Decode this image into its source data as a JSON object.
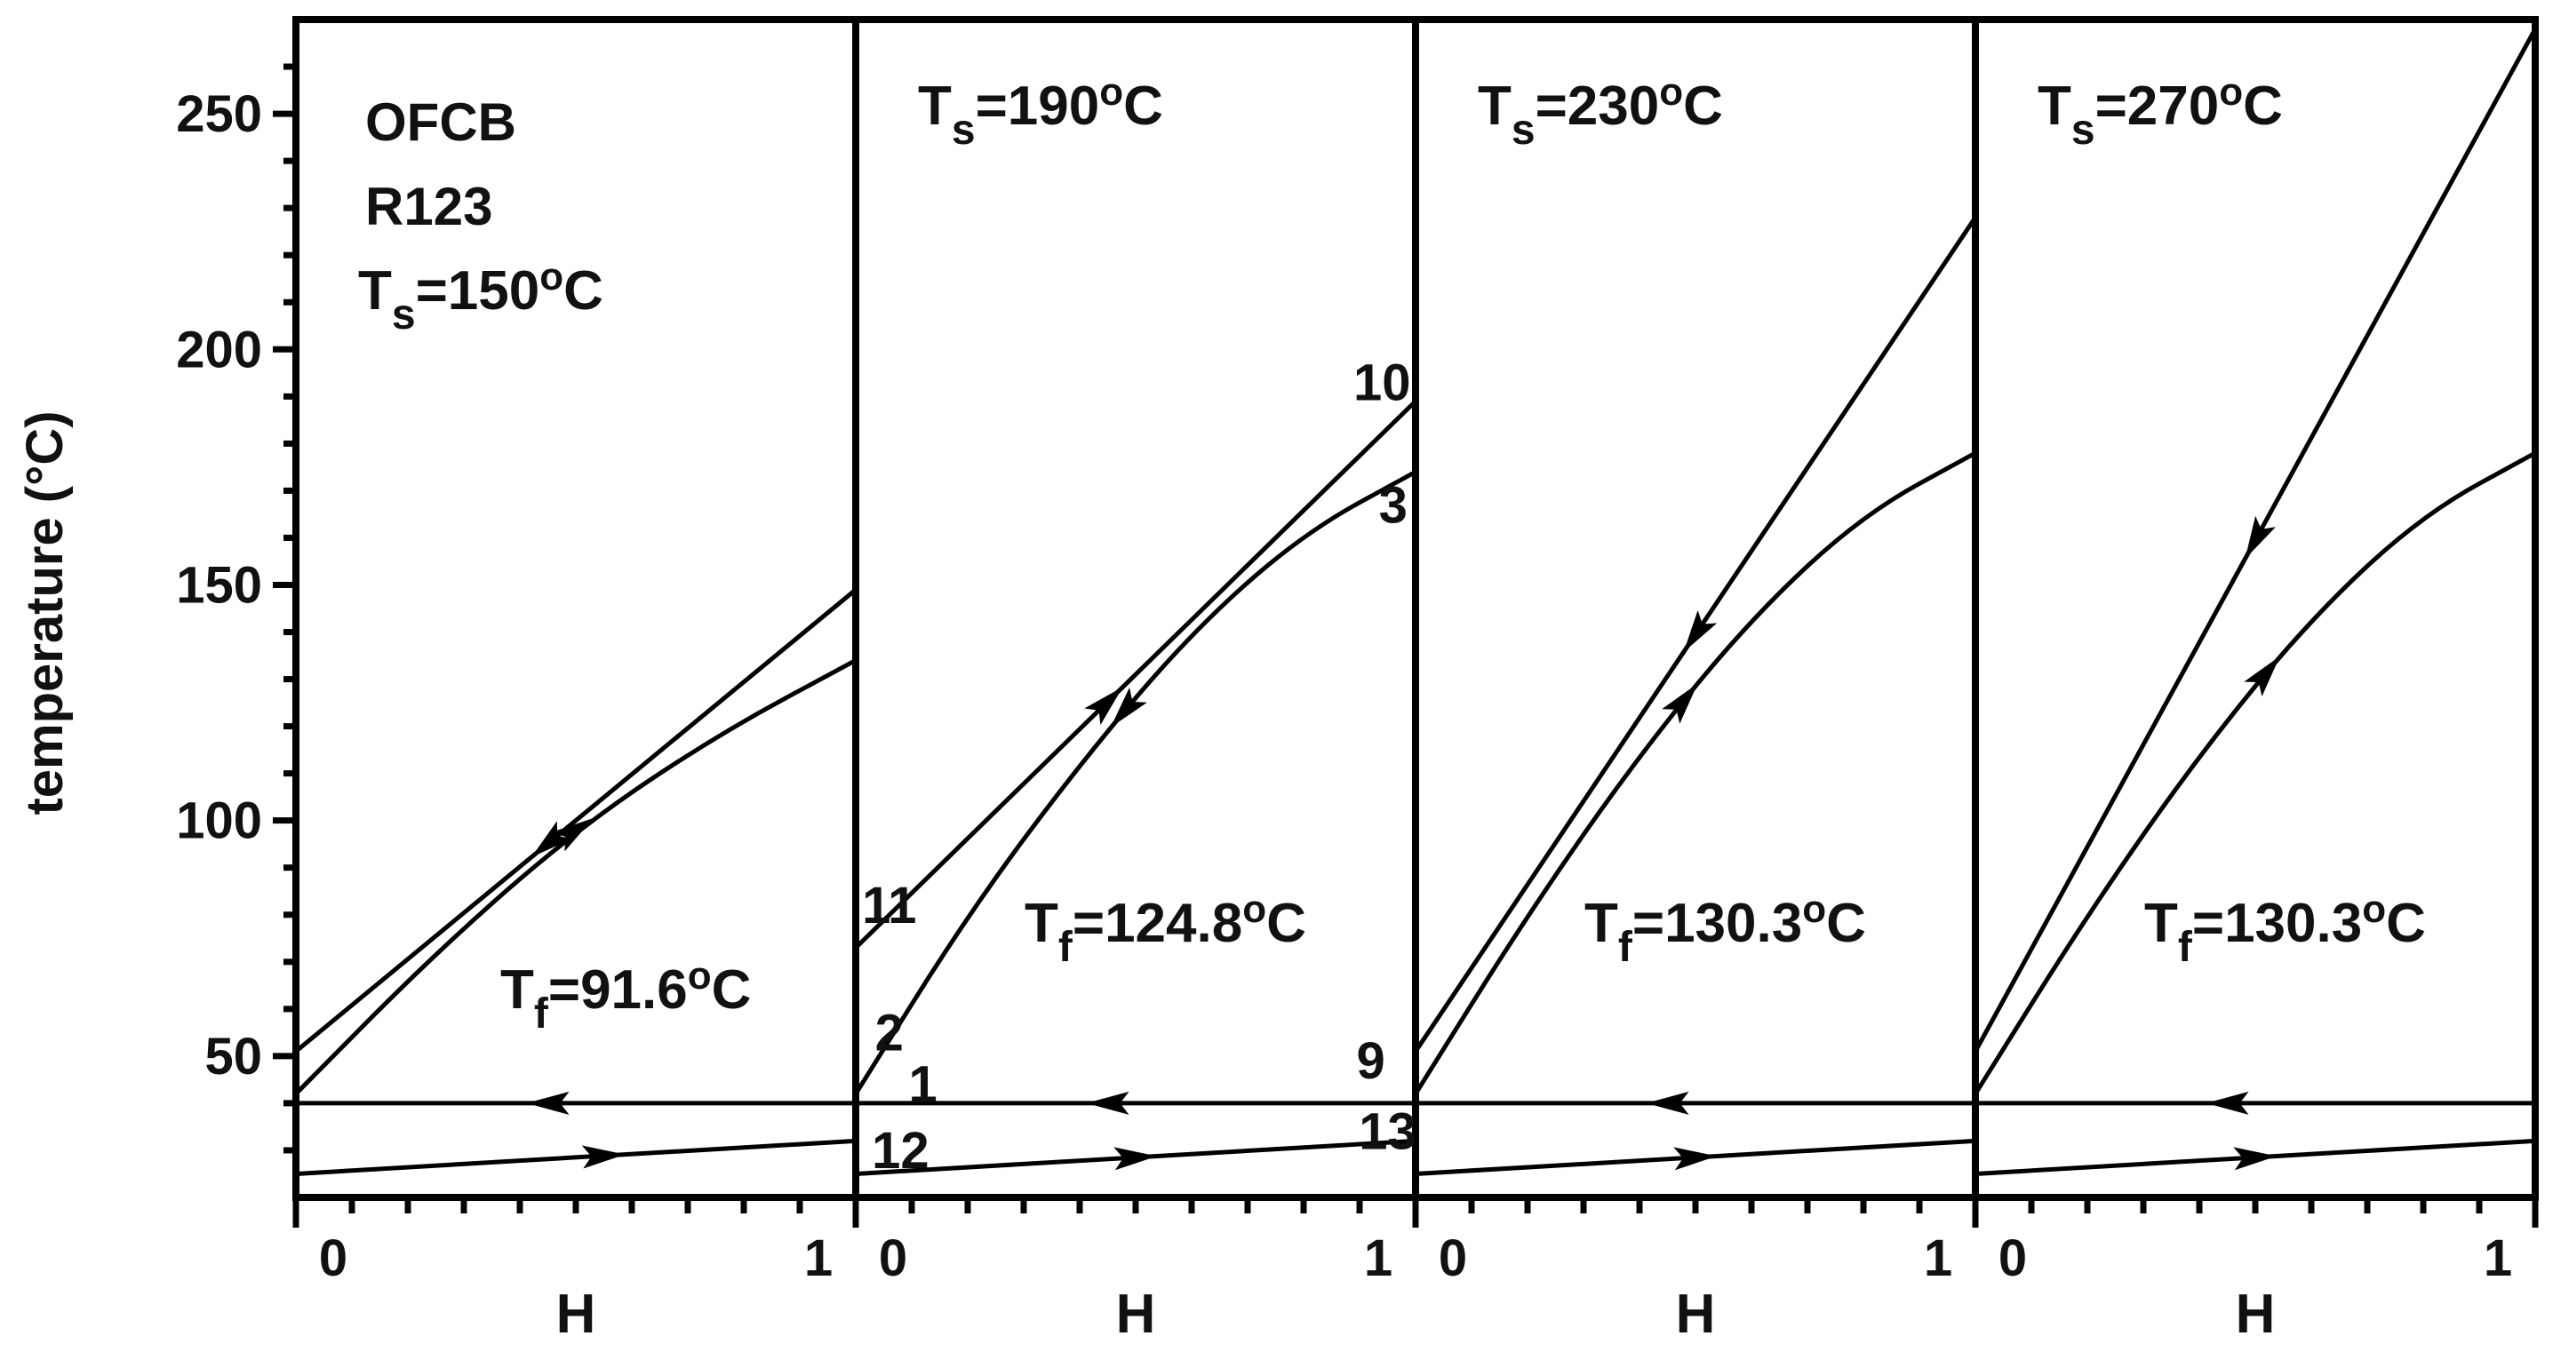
{
  "chart_data": {
    "type": "line",
    "ylabel": "temperature (°C)",
    "xlabel": "H",
    "ylim": [
      20,
      270
    ],
    "xlim": [
      0,
      1
    ],
    "yticks": [
      50,
      100,
      150,
      200,
      250
    ],
    "xtick_labels": [
      "0",
      "1"
    ],
    "panels": [
      {
        "title_lines": [
          "OFCB",
          "R123"
        ],
        "ts_label": {
          "main": "T",
          "sub": "s",
          "rest1": "=150",
          "sup": "o",
          "rest2": "C"
        },
        "tf_label": {
          "main": "T",
          "sub": "f",
          "rest1": "=91.6",
          "sup": "o",
          "rest2": "C"
        },
        "series": [
          {
            "x": [
              0,
              1
            ],
            "y": [
              51,
              149
            ],
            "arrow": {
              "at": 0.45,
              "dir": "down"
            }
          },
          {
            "x": [
              0,
              0.25,
              0.5,
              0.75,
              1
            ],
            "y": [
              42,
              72,
              98,
              118,
              134
            ],
            "arrow": {
              "at": 0.5,
              "dir": "up"
            }
          },
          {
            "x": [
              0,
              1
            ],
            "y": [
              40,
              40
            ],
            "arrow": {
              "at": 0.45,
              "dir": "left"
            }
          },
          {
            "x": [
              0,
              1
            ],
            "y": [
              25,
              32
            ],
            "arrow": {
              "at": 0.55,
              "dir": "right"
            }
          }
        ],
        "point_labels": []
      },
      {
        "title_lines": [],
        "ts_label": {
          "main": "T",
          "sub": "s",
          "rest1": "=190",
          "sup": "o",
          "rest2": "C"
        },
        "tf_label": {
          "main": "T",
          "sub": "f",
          "rest1": "=124.8",
          "sup": "o",
          "rest2": "C"
        },
        "series": [
          {
            "x": [
              0,
              1
            ],
            "y": [
              73,
              189
            ],
            "arrow": {
              "at": 0.45,
              "dir": "up"
            }
          },
          {
            "x": [
              0,
              0.2,
              0.4,
              0.6,
              0.8,
              1
            ],
            "y": [
              42,
              80,
              112,
              140,
              161,
              174
            ],
            "arrow": {
              "at": 0.48,
              "dir": "down"
            }
          },
          {
            "x": [
              0,
              1
            ],
            "y": [
              40,
              40
            ],
            "arrow": {
              "at": 0.45,
              "dir": "left"
            }
          },
          {
            "x": [
              0,
              1
            ],
            "y": [
              25,
              32
            ],
            "arrow": {
              "at": 0.5,
              "dir": "right"
            }
          }
        ],
        "point_labels": [
          {
            "text": "10",
            "x": 0.94,
            "y": 193
          },
          {
            "text": "3",
            "x": 0.96,
            "y": 167
          },
          {
            "text": "11",
            "x": 0.06,
            "y": 82
          },
          {
            "text": "2",
            "x": 0.06,
            "y": 55
          },
          {
            "text": "1",
            "x": 0.12,
            "y": 44
          },
          {
            "text": "9",
            "x": 0.92,
            "y": 49
          },
          {
            "text": "12",
            "x": 0.08,
            "y": 30
          },
          {
            "text": "13",
            "x": 0.95,
            "y": 34
          }
        ]
      },
      {
        "title_lines": [],
        "ts_label": {
          "main": "T",
          "sub": "s",
          "rest1": "=230",
          "sup": "o",
          "rest2": "C"
        },
        "tf_label": {
          "main": "T",
          "sub": "f",
          "rest1": "=130.3",
          "sup": "o",
          "rest2": "C"
        },
        "series": [
          {
            "x": [
              0,
              1
            ],
            "y": [
              51,
              228
            ],
            "arrow": {
              "at": 0.5,
              "dir": "down"
            }
          },
          {
            "x": [
              0,
              0.2,
              0.4,
              0.6,
              0.8,
              1
            ],
            "y": [
              42,
              80,
              114,
              143,
              165,
              178
            ],
            "arrow": {
              "at": 0.48,
              "dir": "up"
            }
          },
          {
            "x": [
              0,
              1
            ],
            "y": [
              40,
              40
            ],
            "arrow": {
              "at": 0.45,
              "dir": "left"
            }
          },
          {
            "x": [
              0,
              1
            ],
            "y": [
              25,
              32
            ],
            "arrow": {
              "at": 0.5,
              "dir": "right"
            }
          }
        ],
        "point_labels": []
      },
      {
        "title_lines": [],
        "ts_label": {
          "main": "T",
          "sub": "s",
          "rest1": "=270",
          "sup": "o",
          "rest2": "C"
        },
        "tf_label": {
          "main": "T",
          "sub": "f",
          "rest1": "=130.3",
          "sup": "o",
          "rest2": "C"
        },
        "series": [
          {
            "x": [
              0,
              1
            ],
            "y": [
              51,
              268
            ],
            "arrow": {
              "at": 0.5,
              "dir": "down"
            }
          },
          {
            "x": [
              0,
              0.2,
              0.4,
              0.6,
              0.8,
              1
            ],
            "y": [
              42,
              80,
              114,
              143,
              165,
              178
            ],
            "arrow": {
              "at": 0.52,
              "dir": "up"
            }
          },
          {
            "x": [
              0,
              1
            ],
            "y": [
              40,
              40
            ],
            "arrow": {
              "at": 0.45,
              "dir": "left"
            }
          },
          {
            "x": [
              0,
              1
            ],
            "y": [
              25,
              32
            ],
            "arrow": {
              "at": 0.5,
              "dir": "right"
            }
          }
        ],
        "point_labels": []
      }
    ]
  }
}
